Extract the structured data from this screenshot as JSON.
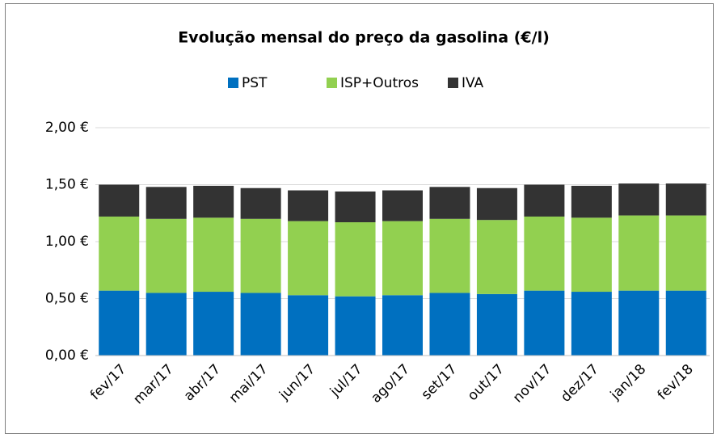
{
  "chart_data": {
    "type": "stacked_bar",
    "title": "Evolução mensal do preço da gasolina (€/l)",
    "categories": [
      "fev/17",
      "mar/17",
      "abr/17",
      "mai/17",
      "jun/17",
      "jul/17",
      "ago/17",
      "set/17",
      "out/17",
      "nov/17",
      "dez/17",
      "jan/18",
      "fev/18"
    ],
    "series": [
      {
        "name": "PST",
        "color": "#0070c0",
        "values": [
          0.57,
          0.55,
          0.56,
          0.55,
          0.53,
          0.52,
          0.53,
          0.55,
          0.54,
          0.57,
          0.56,
          0.57,
          0.57
        ]
      },
      {
        "name": "ISP+Outros",
        "color": "#92d050",
        "values": [
          0.65,
          0.65,
          0.65,
          0.65,
          0.65,
          0.65,
          0.65,
          0.65,
          0.65,
          0.65,
          0.65,
          0.66,
          0.66
        ]
      },
      {
        "name": "IVA",
        "color": "#333333",
        "values": [
          0.28,
          0.28,
          0.28,
          0.27,
          0.27,
          0.27,
          0.27,
          0.28,
          0.28,
          0.28,
          0.28,
          0.28,
          0.28
        ]
      }
    ],
    "ylim": [
      0,
      2
    ],
    "yticks": [
      {
        "value": 0,
        "label": "0,00 €"
      },
      {
        "value": 0.5,
        "label": "0,50 €"
      },
      {
        "value": 1,
        "label": "1,00 €"
      },
      {
        "value": 1.5,
        "label": "1,50 €"
      },
      {
        "value": 2,
        "label": "2,00 €"
      }
    ],
    "grid": true,
    "legend": "top"
  }
}
